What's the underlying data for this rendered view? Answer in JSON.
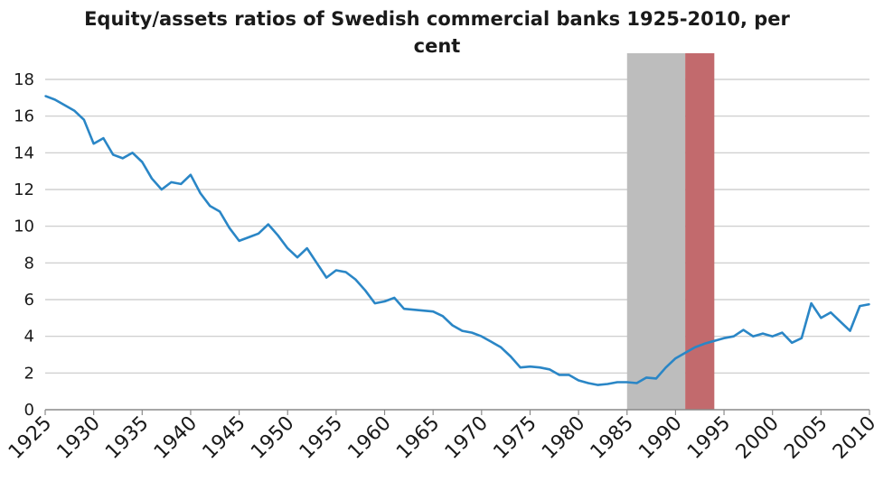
{
  "chart_data": {
    "type": "line",
    "title_line1": "Equity/assets ratios of Swedish commercial banks 1925-2010, per",
    "title_line2": "cent",
    "xlabel": "",
    "ylabel": "",
    "xlim": [
      1925,
      2010
    ],
    "ylim": [
      0,
      18
    ],
    "y_ticks": [
      0,
      2,
      4,
      6,
      8,
      10,
      12,
      14,
      16,
      18
    ],
    "x_ticks": [
      "1925",
      "1930",
      "1935",
      "1940",
      "1945",
      "1950",
      "1955",
      "1960",
      "1965",
      "1970",
      "1975",
      "1980",
      "1985",
      "1990",
      "1995",
      "2000",
      "2005",
      "2010"
    ],
    "grid": "horizontal",
    "line_color": "#2a86c6",
    "shaded_periods": [
      {
        "from": 1985,
        "to": 1991,
        "color": "#bdbdbd"
      },
      {
        "from": 1991,
        "to": 1994,
        "color": "#c26a6d"
      }
    ],
    "series": [
      {
        "x": [
          1925,
          1926,
          1927,
          1928,
          1929,
          1930,
          1931,
          1932,
          1933,
          1934,
          1935,
          1936,
          1937,
          1938,
          1939,
          1940,
          1941,
          1942,
          1943,
          1944,
          1945,
          1946,
          1947,
          1948,
          1949,
          1950,
          1951,
          1952,
          1953,
          1954,
          1955,
          1956,
          1957,
          1958,
          1959,
          1960,
          1961,
          1962,
          1963,
          1964,
          1965,
          1966,
          1967,
          1968,
          1969,
          1970,
          1971,
          1972,
          1973,
          1974,
          1975,
          1976,
          1977,
          1978,
          1979,
          1980,
          1981,
          1982,
          1983,
          1984,
          1985,
          1986,
          1987,
          1988,
          1989,
          1990,
          1991,
          1992,
          1993,
          1994,
          1995,
          1996,
          1997,
          1998,
          1999,
          2000,
          2001,
          2002,
          2003,
          2004,
          2005,
          2006,
          2007,
          2008,
          2009,
          2010
        ],
        "y": [
          17.1,
          16.9,
          16.6,
          16.3,
          15.8,
          14.5,
          14.8,
          13.9,
          13.7,
          14.0,
          13.5,
          12.6,
          12.0,
          12.4,
          12.3,
          12.8,
          11.8,
          11.1,
          10.8,
          9.9,
          9.2,
          9.4,
          9.6,
          10.1,
          9.5,
          8.8,
          8.3,
          8.8,
          8.0,
          7.2,
          7.6,
          7.5,
          7.1,
          6.5,
          5.8,
          5.9,
          6.1,
          5.5,
          5.45,
          5.4,
          5.35,
          5.1,
          4.6,
          4.3,
          4.2,
          4.0,
          3.7,
          3.4,
          2.9,
          2.3,
          2.35,
          2.3,
          2.2,
          1.9,
          1.9,
          1.6,
          1.45,
          1.35,
          1.4,
          1.5,
          1.5,
          1.45,
          1.75,
          1.7,
          2.3,
          2.8,
          3.1,
          3.4,
          3.6,
          3.75,
          3.9,
          4.0,
          4.35,
          4.0,
          4.15,
          4.0,
          4.2,
          3.65,
          3.9,
          5.8,
          5.0,
          5.3,
          4.8,
          4.3,
          5.65,
          5.75
        ]
      }
    ]
  }
}
